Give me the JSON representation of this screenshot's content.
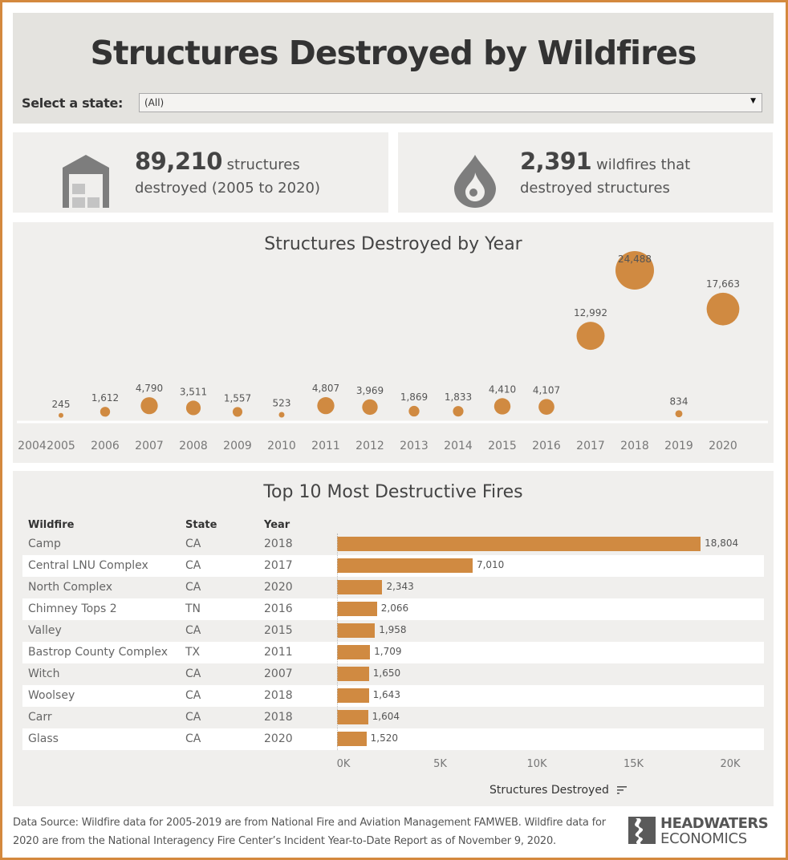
{
  "header": {
    "title": "Structures Destroyed by Wildfires",
    "filter_label": "Select a state:",
    "filter_value": "(All)"
  },
  "kpis": {
    "structures": {
      "value": "89,210",
      "line1_suffix": "structures",
      "line2": "destroyed (2005 to 2020)",
      "icon": "warehouse-icon"
    },
    "wildfires": {
      "value": "2,391",
      "line1_suffix": "wildfires that",
      "line2": "destroyed structures",
      "icon": "fire-drop-icon"
    }
  },
  "colors": {
    "accent": "#d08a41",
    "border": "#d4893e",
    "panel": "#f0efed",
    "header": "#e4e3df"
  },
  "chart_data": [
    {
      "type": "scatter",
      "title": "Structures Destroyed by Year",
      "xlabel": "",
      "ylabel": "",
      "x_ticks": [
        "2004",
        "2005",
        "2006",
        "2007",
        "2008",
        "2009",
        "2010",
        "2011",
        "2012",
        "2013",
        "2014",
        "2015",
        "2016",
        "2017",
        "2018",
        "2019",
        "2020"
      ],
      "x": [
        2005,
        2006,
        2007,
        2008,
        2009,
        2010,
        2011,
        2012,
        2013,
        2014,
        2015,
        2016,
        2017,
        2018,
        2019,
        2020
      ],
      "values": [
        245,
        1612,
        4790,
        3511,
        1557,
        523,
        4807,
        3969,
        1869,
        1833,
        4410,
        4107,
        12992,
        24488,
        834,
        17663
      ],
      "labels": [
        "245",
        "1,612",
        "4,790",
        "3,511",
        "1,557",
        "523",
        "4,807",
        "3,969",
        "1,869",
        "1,833",
        "4,410",
        "4,107",
        "12,992",
        "24,488",
        "834",
        "17,663"
      ],
      "encoding": "bubble size and height proportional to value",
      "grid": false
    },
    {
      "type": "bar",
      "title": "Top 10 Most Destructive Fires",
      "orientation": "horizontal",
      "columns": [
        "Wildfire",
        "State",
        "Year"
      ],
      "categories": [
        "Camp",
        "Central LNU Complex",
        "North Complex",
        "Chimney Tops 2",
        "Valley",
        "Bastrop County Complex",
        "Witch",
        "Woolsey",
        "Carr",
        "Glass"
      ],
      "states": [
        "CA",
        "CA",
        "CA",
        "TN",
        "CA",
        "TX",
        "CA",
        "CA",
        "CA",
        "CA"
      ],
      "years": [
        "2018",
        "2017",
        "2020",
        "2016",
        "2015",
        "2011",
        "2007",
        "2018",
        "2018",
        "2020"
      ],
      "values": [
        18804,
        7010,
        2343,
        2066,
        1958,
        1709,
        1650,
        1643,
        1604,
        1520
      ],
      "labels": [
        "18,804",
        "7,010",
        "2,343",
        "2,066",
        "1,958",
        "1,709",
        "1,650",
        "1,643",
        "1,604",
        "1,520"
      ],
      "xlabel": "Structures Destroyed",
      "x_ticks": [
        "0K",
        "5K",
        "10K",
        "15K",
        "20K"
      ],
      "xlim": [
        0,
        20000
      ]
    }
  ],
  "bubble_chart": {
    "title": "Structures Destroyed by Year",
    "points": [
      {
        "year": "2005",
        "label": "245"
      },
      {
        "year": "2006",
        "label": "1,612"
      },
      {
        "year": "2007",
        "label": "4,790"
      },
      {
        "year": "2008",
        "label": "3,511"
      },
      {
        "year": "2009",
        "label": "1,557"
      },
      {
        "year": "2010",
        "label": "523"
      },
      {
        "year": "2011",
        "label": "4,807"
      },
      {
        "year": "2012",
        "label": "3,969"
      },
      {
        "year": "2013",
        "label": "1,869"
      },
      {
        "year": "2014",
        "label": "1,833"
      },
      {
        "year": "2015",
        "label": "4,410"
      },
      {
        "year": "2016",
        "label": "4,107"
      },
      {
        "year": "2017",
        "label": "12,992"
      },
      {
        "year": "2018",
        "label": "24,488"
      },
      {
        "year": "2019",
        "label": "834"
      },
      {
        "year": "2020",
        "label": "17,663"
      }
    ],
    "axis_years": [
      "2004",
      "2005",
      "2006",
      "2007",
      "2008",
      "2009",
      "2010",
      "2011",
      "2012",
      "2013",
      "2014",
      "2015",
      "2016",
      "2017",
      "2018",
      "2019",
      "2020"
    ]
  },
  "top_fires": {
    "title": "Top 10 Most Destructive Fires",
    "headers": {
      "wildfire": "Wildfire",
      "state": "State",
      "year": "Year"
    },
    "rows": [
      {
        "name": "Camp",
        "state": "CA",
        "year": "2018",
        "value": "18,804"
      },
      {
        "name": "Central LNU Complex",
        "state": "CA",
        "year": "2017",
        "value": "7,010"
      },
      {
        "name": "North Complex",
        "state": "CA",
        "year": "2020",
        "value": "2,343"
      },
      {
        "name": "Chimney Tops 2",
        "state": "TN",
        "year": "2016",
        "value": "2,066"
      },
      {
        "name": "Valley",
        "state": "CA",
        "year": "2015",
        "value": "1,958"
      },
      {
        "name": "Bastrop County Complex",
        "state": "TX",
        "year": "2011",
        "value": "1,709"
      },
      {
        "name": "Witch",
        "state": "CA",
        "year": "2007",
        "value": "1,650"
      },
      {
        "name": "Woolsey",
        "state": "CA",
        "year": "2018",
        "value": "1,643"
      },
      {
        "name": "Carr",
        "state": "CA",
        "year": "2018",
        "value": "1,604"
      },
      {
        "name": "Glass",
        "state": "CA",
        "year": "2020",
        "value": "1,520"
      }
    ],
    "ticks": [
      "0K",
      "5K",
      "10K",
      "15K",
      "20K"
    ],
    "axis_title": "Structures Destroyed",
    "sort_icon": "sort-descending-icon"
  },
  "footer": {
    "source_line1": "Data Source: Wildfire data for 2005-2019 are from National Fire and Aviation Management FAMWEB. Wildfire data for",
    "source_line2": "2020 are from the National Interagency Fire Center’s Incident Year-to-Date Report as of November 9, 2020.",
    "logo_line1": "HEADWATERS",
    "logo_line2": "ECONOMICS"
  }
}
